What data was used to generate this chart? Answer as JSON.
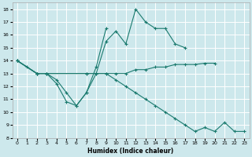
{
  "xlabel": "Humidex (Indice chaleur)",
  "bg_color": "#cde8ec",
  "grid_color": "#ffffff",
  "line_color": "#1a7a6e",
  "xlim": [
    -0.5,
    23.5
  ],
  "ylim": [
    8,
    18.5
  ],
  "yticks": [
    8,
    9,
    10,
    11,
    12,
    13,
    14,
    15,
    16,
    17,
    18
  ],
  "xticks": [
    0,
    1,
    2,
    3,
    4,
    5,
    6,
    7,
    8,
    9,
    10,
    11,
    12,
    13,
    14,
    15,
    16,
    17,
    18,
    19,
    20,
    21,
    22,
    23
  ],
  "lines": [
    {
      "x": [
        0,
        1,
        2,
        3,
        4,
        5,
        6,
        7,
        8,
        9,
        10,
        11,
        12,
        13,
        14,
        15,
        16,
        17
      ],
      "y": [
        14,
        13.5,
        13,
        13,
        12.2,
        10.8,
        10.5,
        11.5,
        13.0,
        15.5,
        16.3,
        15.3,
        18.0,
        17.0,
        16.5,
        16.5,
        15.3,
        15.0
      ]
    },
    {
      "x": [
        0,
        2,
        3,
        7,
        8,
        9,
        10,
        11,
        12,
        13,
        14,
        15,
        16,
        17,
        18,
        19,
        20
      ],
      "y": [
        14,
        13.0,
        13.0,
        13.0,
        13.0,
        13.0,
        13.0,
        13.0,
        13.3,
        13.3,
        13.5,
        13.5,
        13.7,
        13.7,
        13.7,
        13.8,
        13.8
      ]
    },
    {
      "x": [
        0,
        2,
        3,
        4,
        5,
        6,
        7,
        8,
        9
      ],
      "y": [
        14,
        13.0,
        13.0,
        12.5,
        11.5,
        10.5,
        11.5,
        13.5,
        16.5
      ]
    },
    {
      "x": [
        0,
        2,
        3,
        7,
        9,
        10,
        11,
        12,
        13,
        14,
        15,
        16,
        17,
        18,
        19,
        20,
        21,
        22,
        23
      ],
      "y": [
        14,
        13.0,
        13.0,
        13.0,
        13.0,
        12.5,
        12.0,
        11.5,
        11.0,
        10.5,
        10.0,
        9.5,
        9.0,
        8.5,
        8.8,
        8.5,
        9.2,
        8.5,
        8.5
      ]
    }
  ]
}
